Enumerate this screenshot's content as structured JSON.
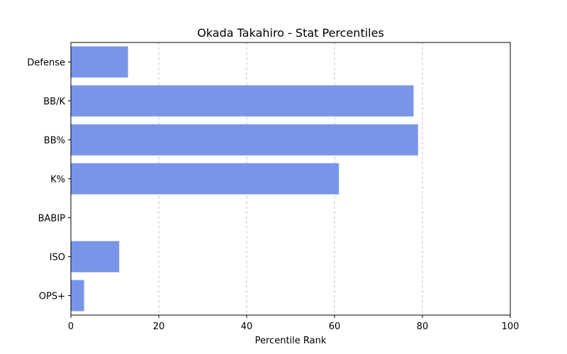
{
  "chart_data": {
    "type": "bar",
    "orientation": "horizontal",
    "title": "Okada Takahiro - Stat Percentiles",
    "xlabel": "Percentile Rank",
    "ylabel": "",
    "categories": [
      "OPS+",
      "ISO",
      "BABIP",
      "K%",
      "BB%",
      "BB/K",
      "Defense"
    ],
    "values": [
      3,
      11,
      0,
      61,
      79,
      78,
      13
    ],
    "xlim": [
      0,
      100
    ],
    "xticks": [
      0,
      20,
      40,
      60,
      80,
      100
    ],
    "grid": "x-dashed",
    "bar_color": "#7995ea"
  }
}
